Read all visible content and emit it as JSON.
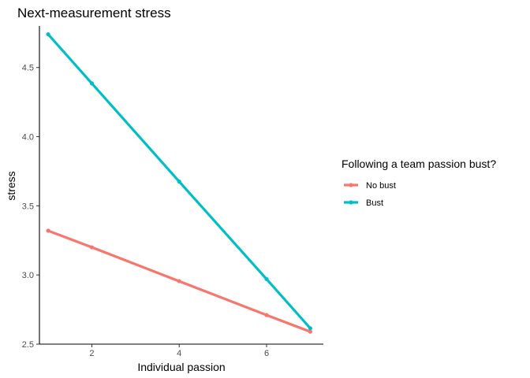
{
  "chart_data": {
    "type": "line",
    "title": "Next-measurement stress",
    "xlabel": "Individual passion",
    "ylabel": "stress",
    "xlim": [
      0.8,
      7.3
    ],
    "ylim": [
      2.5,
      4.8
    ],
    "x_ticks": [
      2,
      4,
      6
    ],
    "y_ticks": [
      2.5,
      3.0,
      3.5,
      4.0,
      4.5
    ],
    "y_tick_labels": [
      "2.5",
      "3.0",
      "3.5",
      "4.0",
      "4.5"
    ],
    "x": [
      1,
      2,
      4,
      6,
      7
    ],
    "legend_title": "Following a team passion bust?",
    "legend_position": "right",
    "grid": false,
    "series": [
      {
        "name": "No bust",
        "color": "#F8766D",
        "values": [
          3.32,
          3.2,
          2.955,
          2.71,
          2.59
        ]
      },
      {
        "name": "Bust",
        "color": "#00BFC4",
        "values": [
          4.74,
          4.385,
          3.675,
          2.97,
          2.615
        ]
      }
    ]
  }
}
